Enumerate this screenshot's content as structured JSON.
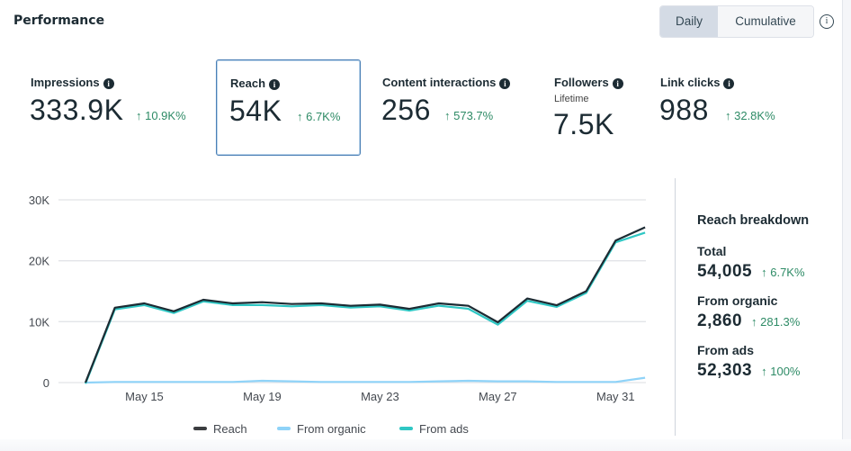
{
  "header": {
    "title": "Performance",
    "toggle": [
      {
        "label": "Daily",
        "active": true
      },
      {
        "label": "Cumulative",
        "active": false
      }
    ],
    "info_icon": "info-circle-icon"
  },
  "metrics": [
    {
      "label": "Impressions",
      "value": "333.9K",
      "change": "↑ 10.9K%",
      "selected": false
    },
    {
      "label": "Reach",
      "value": "54K",
      "change": "↑ 6.7K%",
      "selected": true
    },
    {
      "label": "Content interactions",
      "value": "256",
      "change": "↑ 573.7%",
      "selected": false
    },
    {
      "label": "Followers",
      "sublabel": "Lifetime",
      "value": "7.5K",
      "selected": false
    },
    {
      "label": "Link clicks",
      "value": "988",
      "change": "↑ 32.8K%",
      "selected": false
    }
  ],
  "breakdown": {
    "title": "Reach breakdown",
    "items": [
      {
        "label": "Total",
        "value": "54,005",
        "change": "↑ 6.7K%"
      },
      {
        "label": "From organic",
        "value": "2,860",
        "change": "↑ 281.3%"
      },
      {
        "label": "From ads",
        "value": "52,303",
        "change": "↑ 100%"
      }
    ]
  },
  "chart_data": {
    "type": "line",
    "title": "",
    "xlabel": "",
    "ylabel": "",
    "ylim": [
      0,
      30000
    ],
    "yticks": [
      0,
      10000,
      20000,
      30000
    ],
    "ytick_labels": [
      "0",
      "10K",
      "20K",
      "30K"
    ],
    "xtick_labels": [
      "May 15",
      "May 19",
      "May 23",
      "May 27",
      "May 31"
    ],
    "xtick_index": [
      2,
      6,
      10,
      14,
      18
    ],
    "grid": true,
    "legend_position": "bottom",
    "x": [
      "May 13",
      "May 14",
      "May 15",
      "May 16",
      "May 17",
      "May 18",
      "May 19",
      "May 20",
      "May 21",
      "May 22",
      "May 23",
      "May 24",
      "May 25",
      "May 26",
      "May 27",
      "May 28",
      "May 29",
      "May 30",
      "May 31",
      "Jun 1"
    ],
    "series": [
      {
        "name": "Reach",
        "color": "#1c2b33",
        "values": [
          0,
          12300,
          13000,
          11700,
          13600,
          13000,
          13200,
          12900,
          13000,
          12600,
          12800,
          12100,
          13000,
          12600,
          9900,
          13800,
          12700,
          15000,
          23300,
          25500
        ]
      },
      {
        "name": "From organic",
        "color": "#8fd3f8",
        "values": [
          0,
          100,
          100,
          100,
          100,
          100,
          300,
          200,
          100,
          100,
          100,
          100,
          200,
          300,
          200,
          200,
          100,
          100,
          100,
          800
        ]
      },
      {
        "name": "From ads",
        "color": "#2fc7c4",
        "values": [
          0,
          12200,
          12900,
          11600,
          13500,
          12900,
          12900,
          12700,
          12900,
          12500,
          12700,
          12000,
          12800,
          12300,
          9700,
          13600,
          12600,
          14900,
          23200,
          24800
        ]
      }
    ]
  }
}
